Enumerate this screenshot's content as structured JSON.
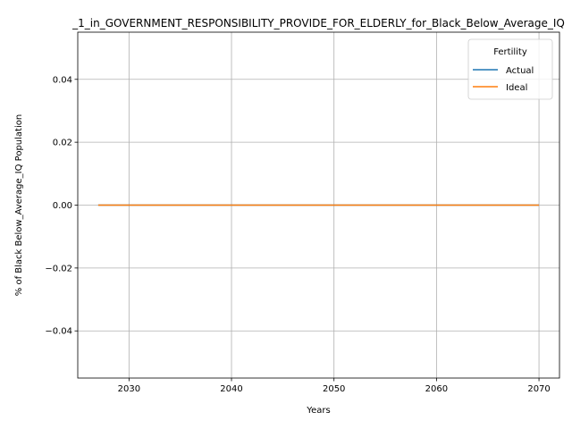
{
  "chart_data": {
    "type": "line",
    "title": "_1_in_GOVERNMENT_RESPONSIBILITY_PROVIDE_FOR_ELDERLY_for_Black_Below_Average_IQ",
    "xlabel": "Years",
    "ylabel": "% of Black Below_Average_IQ Population",
    "xlim": [
      2025,
      2072
    ],
    "ylim": [
      -0.055,
      0.055
    ],
    "x_ticks": [
      2030,
      2040,
      2050,
      2060,
      2070
    ],
    "x_tick_labels": [
      "2030",
      "2040",
      "2050",
      "2060",
      "2070"
    ],
    "y_ticks": [
      -0.04,
      -0.02,
      0.0,
      0.02,
      0.04
    ],
    "y_tick_labels": [
      "−0.04",
      "−0.02",
      "0.00",
      "0.02",
      "0.04"
    ],
    "grid": true,
    "legend": {
      "title": "Fertility",
      "placement": "top-right"
    },
    "x": [
      2027,
      2070
    ],
    "series": [
      {
        "name": "Actual",
        "color": "#1f77b4",
        "values": [
          0,
          0
        ]
      },
      {
        "name": "Ideal",
        "color": "#ff7f0e",
        "values": [
          0,
          0
        ]
      }
    ]
  }
}
